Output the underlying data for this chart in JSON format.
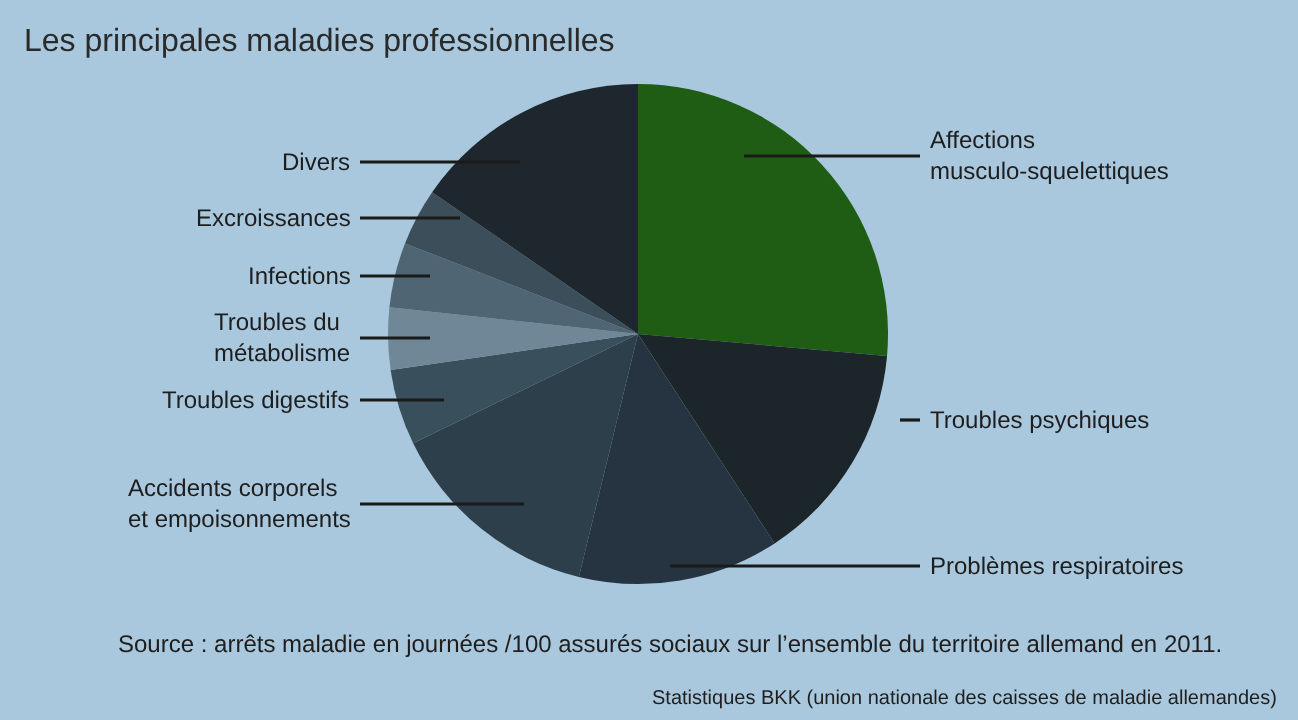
{
  "chart_data": {
    "type": "pie",
    "title": "Les principales maladies professionnelles",
    "categories": [
      "Affections\nmusculo-squelettiques",
      "Troubles psychiques",
      "Problèmes respiratoires",
      "Accidents corporels\net empoisonnements",
      "Troubles digestifs",
      "Troubles du\nmétabolisme",
      "Infections",
      "Excroissances",
      "Divers"
    ],
    "values": [
      26.4,
      14.4,
      13,
      14,
      4.9,
      4,
      4.2,
      3.7,
      15.4
    ],
    "colors": [
      "#1f5c14",
      "#1c2529",
      "#253440",
      "#2d3f4b",
      "#3a4f5c",
      "#6f8796",
      "#4f6573",
      "#3c4e59",
      "#1e272d"
    ],
    "annotations": [
      "Source : arrêts maladie en journées /100 assurés sociaux sur l’ensemble du territoire allemand en 2011.",
      "Statistiques BKK (union nationale des caisses de maladie allemandes)"
    ]
  }
}
